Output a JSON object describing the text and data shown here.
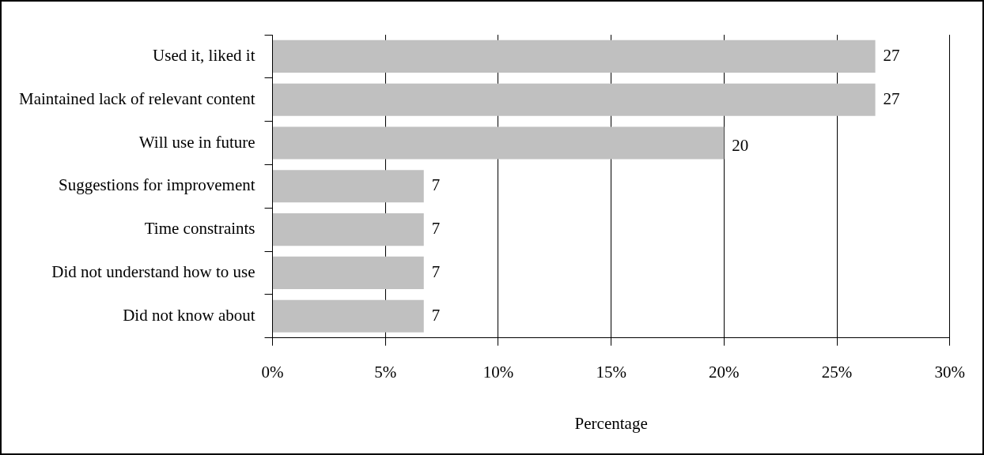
{
  "chart_data": {
    "type": "bar",
    "orientation": "horizontal",
    "xlabel": "Percentage",
    "categories": [
      "Used it, liked it",
      "Maintained lack of relevant content",
      "Will use in future",
      "Suggestions for improvement",
      "Time constraints",
      "Did not understand how to use",
      "Did not know about"
    ],
    "values": [
      26.7,
      26.7,
      20,
      6.7,
      6.7,
      6.7,
      6.7
    ],
    "value_labels": [
      "27",
      "27",
      "20",
      "7",
      "7",
      "7",
      "7"
    ],
    "color": "#c0c0c0",
    "xlim": [
      0,
      30
    ],
    "xticks": [
      {
        "value": 0,
        "label": "0%"
      },
      {
        "value": 5,
        "label": "5%"
      },
      {
        "value": 10,
        "label": "10%"
      },
      {
        "value": 15,
        "label": "15%"
      },
      {
        "value": 20,
        "label": "20%"
      },
      {
        "value": 25,
        "label": "25%"
      },
      {
        "value": 30,
        "label": "30%"
      }
    ],
    "grid": "x",
    "legend": false
  }
}
